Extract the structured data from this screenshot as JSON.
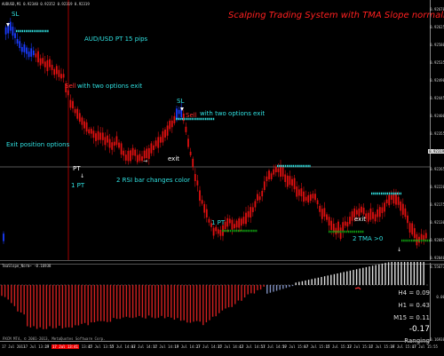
{
  "header": {
    "symbol_line": "AUDUSD,M1  0.92340 0.92352 0.92319 0.92319",
    "title": "Scalping Trading System with TMA Slope normalized"
  },
  "annotations": {
    "sl1": "SL",
    "pt15": "AUD/USD PT 15 pips",
    "sell1": "Sell",
    "two_options1": "with two options exit",
    "exit_options": "Exit position options",
    "pt1": "PT",
    "one_pt1": "1 PT",
    "sl2": "SL",
    "sell2": "Sell",
    "two_options2": "with two options exit",
    "exit1": "exit",
    "rsi": "2 RSI bar changes color",
    "one_pt2": "1 PT",
    "exit2": "exit",
    "tma": "2 TMA >0"
  },
  "price_axis": [
    "0.92670",
    "0.92625",
    "0.92580",
    "0.92535",
    "0.92490",
    "0.92445",
    "0.92400",
    "0.92355",
    "0.92319",
    "0.92265",
    "0.92220",
    "0.92175",
    "0.92130",
    "0.92085",
    "0.92040"
  ],
  "price_axis_current": "0.92319",
  "indicator": {
    "header": "TmaSlope_Norm~ -0.16938",
    "h4": "H4 = 0.09",
    "h1": "H1 = 0.43",
    "m15": "M15 = 0.11",
    "current": "-0.17",
    "status": "Ranging",
    "axis": [
      "0.55677",
      "0.00",
      "-0.16938"
    ]
  },
  "copyright": "PXCM MT4, © 2001-2013, MetaQuotes Software Corp.",
  "time_axis": [
    "17 Jul 2013",
    "17 Jul 13:29",
    "17 Jul 13:37",
    "17 Jul 13:45",
    "17 Jul 13:55",
    "17 Jul 14:03",
    "17 Jul 14:11",
    "17 Jul 14:19",
    "17 Jul 14:27",
    "17 Jul 14:35",
    "17 Jul 14:43",
    "17 Jul 14:51",
    "17 Jul 14:59",
    "17 Jul 15:07",
    "17 Jul 15:15",
    "17 Jul 15:23",
    "17 Jul 15:31",
    "17 Jul 15:39",
    "17 Jul 15:47",
    "17 Jul 15:55"
  ],
  "time_axis_highlight": "17 Jul 13:41",
  "colors": {
    "bear_candle": "#e01010",
    "bull_candle_special": "#1a3cff",
    "level_line": "#30e0e0",
    "target_line": "#10a010",
    "grid": "#888888",
    "indicator_red": "#d02020",
    "indicator_light": "#e0e0e0"
  }
}
